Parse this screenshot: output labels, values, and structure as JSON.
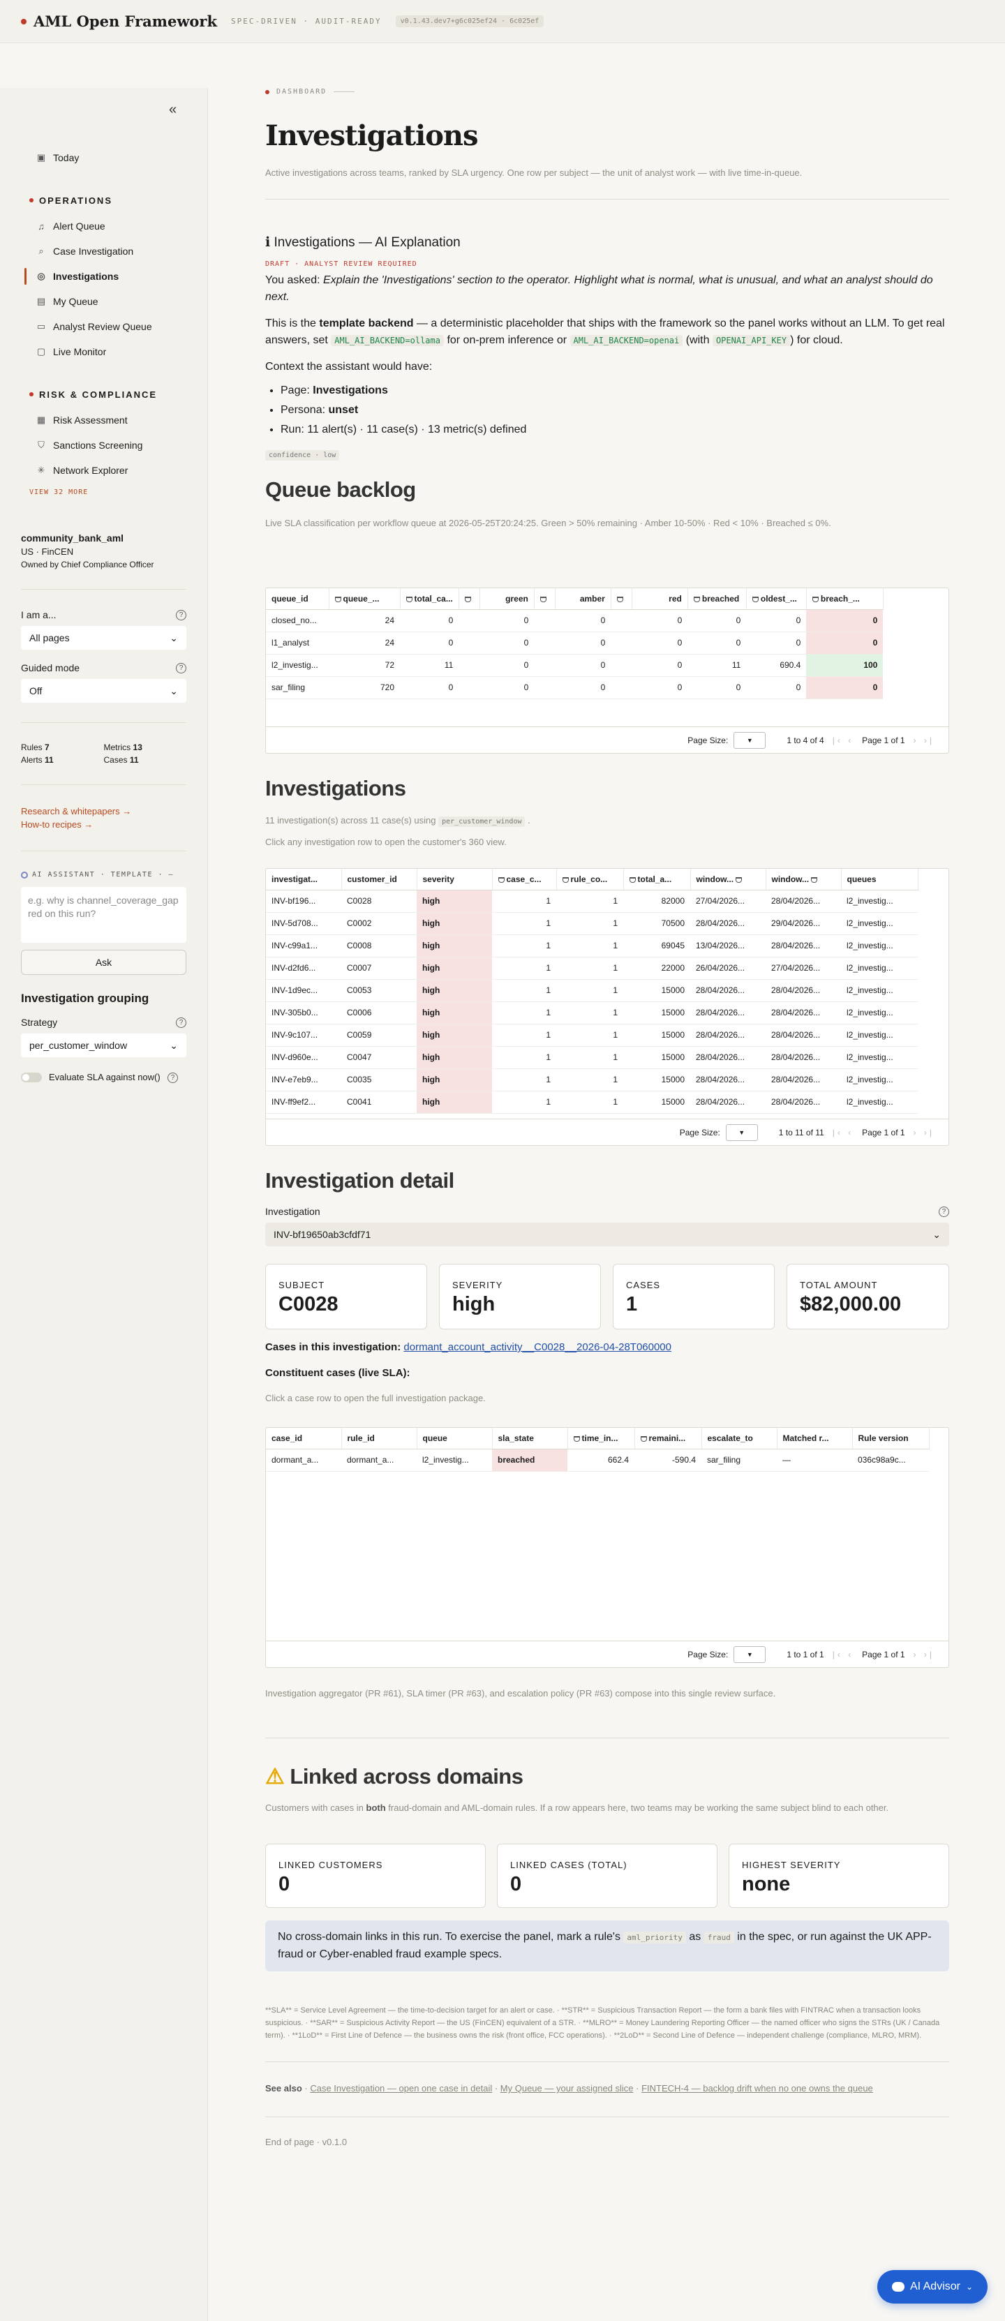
{
  "topbar": {
    "brand": "AML Open Framework",
    "tagline": "SPEC-DRIVEN · AUDIT-READY",
    "version": "v0.1.43.dev7+g6c025ef24 · 6c025ef"
  },
  "sidebar": {
    "today": "Today",
    "operations_title": "OPERATIONS",
    "operations_items": [
      "Alert Queue",
      "Case Investigation",
      "Investigations",
      "My Queue",
      "Analyst Review Queue",
      "Live Monitor"
    ],
    "risk_title": "RISK & COMPLIANCE",
    "risk_items": [
      "Risk Assessment",
      "Sanctions Screening",
      "Network Explorer"
    ],
    "view_more": "VIEW 32 MORE",
    "org_name": "community_bank_aml",
    "org_jurisdiction": "US · FinCEN",
    "org_owner": "Owned by Chief Compliance Officer",
    "i_am_label": "I am a...",
    "i_am_value": "All pages",
    "guided_label": "Guided mode",
    "guided_value": "Off",
    "stats": {
      "rules_label": "Rules",
      "rules": "7",
      "metrics_label": "Metrics",
      "metrics": "13",
      "alerts_label": "Alerts",
      "alerts": "11",
      "cases_label": "Cases",
      "cases": "11"
    },
    "research_link": "Research & whitepapers →",
    "howto_link": "How-to recipes →",
    "ai_tag": "AI ASSISTANT · TEMPLATE · —",
    "ai_placeholder": "e.g. why is channel_coverage_gap red on this run?",
    "ask_label": "Ask",
    "grouping_title": "Investigation grouping",
    "strategy_label": "Strategy",
    "strategy_value": "per_customer_window",
    "sla_label": "Evaluate SLA against now()"
  },
  "main": {
    "crumb": "DASHBOARD",
    "title": "Investigations",
    "subtitle": "Active investigations across teams, ranked by SLA urgency. One row per subject — the unit of analyst work — with live time-in-queue.",
    "explanation": {
      "title": "Investigations — AI Explanation",
      "draft": "DRAFT · ANALYST REVIEW REQUIRED",
      "asked_prefix": "You asked:",
      "asked_text": "Explain the 'Investigations' section to the operator. Highlight what is normal, what is unusual, and what an analyst should do next.",
      "p1_a": "This is the",
      "p1_b": "template backend",
      "p1_c": "— a deterministic placeholder that ships with the framework so the panel works without an LLM. To get real answers, set",
      "code1": "AML_AI_BACKEND=ollama",
      "p1_d": "for on-prem inference or",
      "code2": "AML_AI_BACKEND=openai",
      "p1_e": "(with",
      "code3": "OPENAI_API_KEY",
      "p1_f": ") for cloud.",
      "context_label": "Context the assistant would have:",
      "page_label": "Page:",
      "page_value": "Investigations",
      "persona_label": "Persona:",
      "persona_value": "unset",
      "run_text": "Run: 11 alert(s) · 11 case(s) · 13 metric(s) defined",
      "confidence": "confidence · low"
    },
    "backlog": {
      "title": "Queue backlog",
      "subtitle": "Live SLA classification per workflow queue at 2026-05-25T20:24:25. Green > 50% remaining · Amber 10-50% · Red < 10% · Breached ≤ 0%.",
      "headers": [
        "queue_id",
        "queue_...",
        "total_ca...",
        "",
        "green",
        "",
        "amber",
        "",
        "red",
        "breached",
        "oldest_...",
        "breach_..."
      ],
      "rows": [
        [
          "closed_no...",
          "24",
          "0",
          "0",
          "0",
          "0",
          "0",
          "0",
          "0"
        ],
        [
          "l1_analyst",
          "24",
          "0",
          "0",
          "0",
          "0",
          "0",
          "0",
          "0"
        ],
        [
          "l2_investig...",
          "72",
          "11",
          "0",
          "0",
          "0",
          "11",
          "690.4",
          "100"
        ],
        [
          "sar_filing",
          "720",
          "0",
          "0",
          "0",
          "0",
          "0",
          "0",
          "0"
        ]
      ],
      "page_size": "Page Size:",
      "range": "1 to 4 of 4",
      "page": "Page 1 of 1"
    },
    "investigations": {
      "title": "Investigations",
      "count_text": "11 investigation(s) across 11 case(s) using",
      "count_code": "per_customer_window",
      "hint": "Click any investigation row to open the customer's 360 view.",
      "headers": [
        "investigat...",
        "customer_id",
        "severity",
        "case_c...",
        "rule_co...",
        "total_a...",
        "window...",
        "window...",
        "queues"
      ],
      "rows": [
        [
          "INV-bf196...",
          "C0028",
          "high",
          "1",
          "1",
          "82000",
          "27/04/2026...",
          "28/04/2026...",
          "l2_investig..."
        ],
        [
          "INV-5d708...",
          "C0002",
          "high",
          "1",
          "1",
          "70500",
          "28/04/2026...",
          "29/04/2026...",
          "l2_investig..."
        ],
        [
          "INV-c99a1...",
          "C0008",
          "high",
          "1",
          "1",
          "69045",
          "13/04/2026...",
          "28/04/2026...",
          "l2_investig..."
        ],
        [
          "INV-d2fd6...",
          "C0007",
          "high",
          "1",
          "1",
          "22000",
          "26/04/2026...",
          "27/04/2026...",
          "l2_investig..."
        ],
        [
          "INV-1d9ec...",
          "C0053",
          "high",
          "1",
          "1",
          "15000",
          "28/04/2026...",
          "28/04/2026...",
          "l2_investig..."
        ],
        [
          "INV-305b0...",
          "C0006",
          "high",
          "1",
          "1",
          "15000",
          "28/04/2026...",
          "28/04/2026...",
          "l2_investig..."
        ],
        [
          "INV-9c107...",
          "C0059",
          "high",
          "1",
          "1",
          "15000",
          "28/04/2026...",
          "28/04/2026...",
          "l2_investig..."
        ],
        [
          "INV-d960e...",
          "C0047",
          "high",
          "1",
          "1",
          "15000",
          "28/04/2026...",
          "28/04/2026...",
          "l2_investig..."
        ],
        [
          "INV-e7eb9...",
          "C0035",
          "high",
          "1",
          "1",
          "15000",
          "28/04/2026...",
          "28/04/2026...",
          "l2_investig..."
        ],
        [
          "INV-ff9ef2...",
          "C0041",
          "high",
          "1",
          "1",
          "15000",
          "28/04/2026...",
          "28/04/2026...",
          "l2_investig..."
        ]
      ],
      "page_size": "Page Size:",
      "range": "1 to 11 of 11",
      "page": "Page 1 of 1"
    },
    "detail": {
      "title": "Investigation detail",
      "inv_label": "Investigation",
      "inv_value": "INV-bf19650ab3cfdf71",
      "kpis": [
        {
          "label": "SUBJECT",
          "value": "C0028"
        },
        {
          "label": "SEVERITY",
          "value": "high"
        },
        {
          "label": "CASES",
          "value": "1"
        },
        {
          "label": "TOTAL AMOUNT",
          "value": "$82,000.00"
        }
      ],
      "cases_label": "Cases in this investigation:",
      "cases_link": "dormant_account_activity__C0028__2026-04-28T060000",
      "constituent_label": "Constituent cases (live SLA):",
      "constituent_hint": "Click a case row to open the full investigation package.",
      "headers": [
        "case_id",
        "rule_id",
        "queue",
        "sla_state",
        "time_in...",
        "remaini...",
        "escalate_to",
        "Matched r...",
        "Rule version"
      ],
      "rows": [
        [
          "dormant_a...",
          "dormant_a...",
          "l2_investig...",
          "breached",
          "662.4",
          "-590.4",
          "sar_filing",
          "—",
          "036c98a9c..."
        ]
      ],
      "page_size": "Page Size:",
      "range": "1 to 1 of 1",
      "page": "Page 1 of 1",
      "footer": "Investigation aggregator (PR #61), SLA timer (PR #63), and escalation policy (PR #63) compose into this single review surface."
    },
    "linked": {
      "title": "Linked across domains",
      "sub_a": "Customers with cases in",
      "sub_b": "both",
      "sub_c": "fraud-domain and AML-domain rules. If a row appears here, two teams may be working the same subject blind to each other.",
      "kpis": [
        {
          "label": "LINKED CUSTOMERS",
          "value": "0"
        },
        {
          "label": "LINKED CASES (TOTAL)",
          "value": "0"
        },
        {
          "label": "HIGHEST SEVERITY",
          "value": "none"
        }
      ],
      "info_a": "No cross-domain links in this run. To exercise the panel, mark a rule's",
      "info_code1": "aml_priority",
      "info_b": "as",
      "info_code2": "fraud",
      "info_c": "in the spec, or run against the UK APP-fraud or Cyber-enabled fraud example specs."
    },
    "glossary": "**SLA** = Service Level Agreement — the time-to-decision target for an alert or case. · **STR** = Suspicious Transaction Report — the form a bank files with FINTRAC when a transaction looks suspicious. · **SAR** = Suspicious Activity Report — the US (FinCEN) equivalent of a STR. · **MLRO** = Money Laundering Reporting Officer — the named officer who signs the STRs (UK / Canada term). · **1LoD** = First Line of Defence — the business owns the risk (front office, FCC operations). · **2LoD** = Second Line of Defence — independent challenge (compliance, MLRO, MRM).",
    "see_also_label": "See also",
    "see_also_links": [
      "Case Investigation — open one case in detail",
      "My Queue — your assigned slice",
      "FINTECH-4 — backlog drift when no one owns the queue"
    ],
    "end": "End of page · v0.1.0"
  },
  "fab": {
    "label": "AI Advisor"
  },
  "colors": {
    "accent": "#b8491f",
    "brand_dot": "#c0392b",
    "fab": "#1f5fd1",
    "breach_red": "#f8e1e1",
    "ok_green": "#e1f4e4"
  }
}
